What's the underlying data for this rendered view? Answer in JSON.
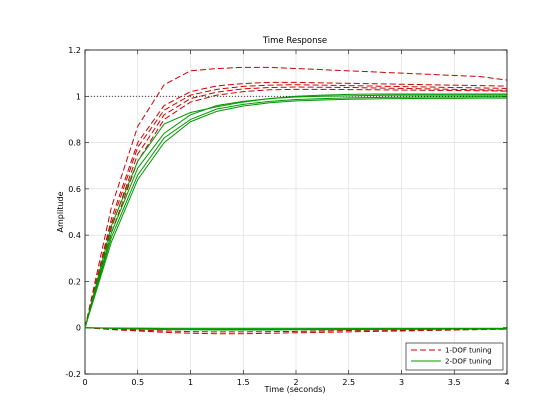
{
  "chart_data": {
    "type": "line",
    "title": "Time Response",
    "xlabel": "Time (seconds)",
    "ylabel": "Amplitude",
    "xlim": [
      0,
      4
    ],
    "ylim": [
      -0.2,
      1.2
    ],
    "xticks": [
      0,
      0.5,
      1,
      1.5,
      2,
      2.5,
      3,
      3.5,
      4
    ],
    "yticks": [
      -0.2,
      0,
      0.2,
      0.4,
      0.6,
      0.8,
      1,
      1.2
    ],
    "xtick_labels": [
      "0",
      "0.5",
      "1",
      "1.5",
      "2",
      "2.5",
      "3",
      "3.5",
      "4"
    ],
    "ytick_labels": [
      "-0.2",
      "0",
      "0.2",
      "0.4",
      "0.6",
      "0.8",
      "1",
      "1.2"
    ],
    "grid": true,
    "legend_position": "bottom-right",
    "reference_line": {
      "y": 1,
      "style": "dotted",
      "color": "#000000"
    },
    "x": [
      0,
      0.25,
      0.5,
      0.75,
      1,
      1.25,
      1.5,
      1.75,
      2,
      2.25,
      2.5,
      2.75,
      3,
      3.25,
      3.5,
      3.75,
      4
    ],
    "series": [
      {
        "name": "1-DOF tuning",
        "color": "#cc0000",
        "style": "dashed",
        "runs": [
          [
            0,
            0.52,
            0.87,
            1.05,
            1.11,
            1.12,
            1.125,
            1.125,
            1.12,
            1.115,
            1.11,
            1.105,
            1.1,
            1.095,
            1.09,
            1.085,
            1.07
          ],
          [
            0,
            0.47,
            0.8,
            0.96,
            1.02,
            1.045,
            1.055,
            1.06,
            1.06,
            1.058,
            1.056,
            1.054,
            1.052,
            1.05,
            1.048,
            1.046,
            1.044
          ],
          [
            0,
            0.45,
            0.78,
            0.94,
            1.005,
            1.03,
            1.043,
            1.048,
            1.05,
            1.048,
            1.046,
            1.044,
            1.042,
            1.04,
            1.038,
            1.036,
            1.034
          ],
          [
            0,
            0.43,
            0.75,
            0.92,
            0.99,
            1.018,
            1.032,
            1.038,
            1.04,
            1.039,
            1.038,
            1.036,
            1.034,
            1.032,
            1.03,
            1.028,
            1.026
          ],
          [
            0,
            0.41,
            0.72,
            0.9,
            0.975,
            1.005,
            1.02,
            1.028,
            1.03,
            1.03,
            1.029,
            1.028,
            1.027,
            1.026,
            1.025,
            1.024,
            1.022
          ]
        ],
        "disturbance_runs": [
          [
            0,
            -0.008,
            -0.014,
            -0.02,
            -0.024,
            -0.026,
            -0.026,
            -0.024,
            -0.022,
            -0.02,
            -0.018,
            -0.016,
            -0.014,
            -0.012,
            -0.01,
            -0.008,
            -0.006
          ],
          [
            0,
            -0.005,
            -0.01,
            -0.014,
            -0.017,
            -0.018,
            -0.018,
            -0.017,
            -0.016,
            -0.014,
            -0.012,
            -0.011,
            -0.01,
            -0.009,
            -0.008,
            -0.007,
            -0.006
          ]
        ]
      },
      {
        "name": "2-DOF tuning",
        "color": "#009900",
        "style": "solid",
        "runs": [
          [
            0,
            0.44,
            0.72,
            0.88,
            0.93,
            0.955,
            0.975,
            0.99,
            1.0,
            1.005,
            1.008,
            1.01,
            1.01,
            1.01,
            1.01,
            1.01,
            1.01
          ],
          [
            0,
            0.41,
            0.69,
            0.84,
            0.92,
            0.96,
            0.978,
            0.99,
            0.997,
            1.0,
            1.002,
            1.004,
            1.005,
            1.005,
            1.005,
            1.005,
            1.005
          ],
          [
            0,
            0.39,
            0.66,
            0.82,
            0.9,
            0.945,
            0.965,
            0.978,
            0.986,
            0.99,
            0.993,
            0.995,
            0.996,
            0.997,
            0.997,
            0.998,
            0.998
          ],
          [
            0,
            0.37,
            0.64,
            0.8,
            0.89,
            0.935,
            0.958,
            0.972,
            0.98,
            0.984,
            0.987,
            0.989,
            0.99,
            0.991,
            0.991,
            0.992,
            0.992
          ]
        ],
        "disturbance_runs": [
          [
            0,
            -0.003,
            -0.006,
            -0.008,
            -0.009,
            -0.01,
            -0.01,
            -0.01,
            -0.009,
            -0.009,
            -0.008,
            -0.008,
            -0.007,
            -0.007,
            -0.006,
            -0.006,
            -0.006
          ],
          [
            0,
            -0.001,
            -0.002,
            -0.003,
            -0.003,
            -0.003,
            -0.003,
            -0.003,
            -0.003,
            -0.003,
            -0.003,
            -0.003,
            -0.003,
            -0.003,
            -0.003,
            -0.003,
            -0.003
          ],
          [
            0,
            -0.002,
            -0.004,
            -0.006,
            -0.007,
            -0.007,
            -0.007,
            -0.007,
            -0.007,
            -0.006,
            -0.006,
            -0.006,
            -0.005,
            -0.005,
            -0.005,
            -0.005,
            -0.004
          ]
        ]
      }
    ]
  }
}
